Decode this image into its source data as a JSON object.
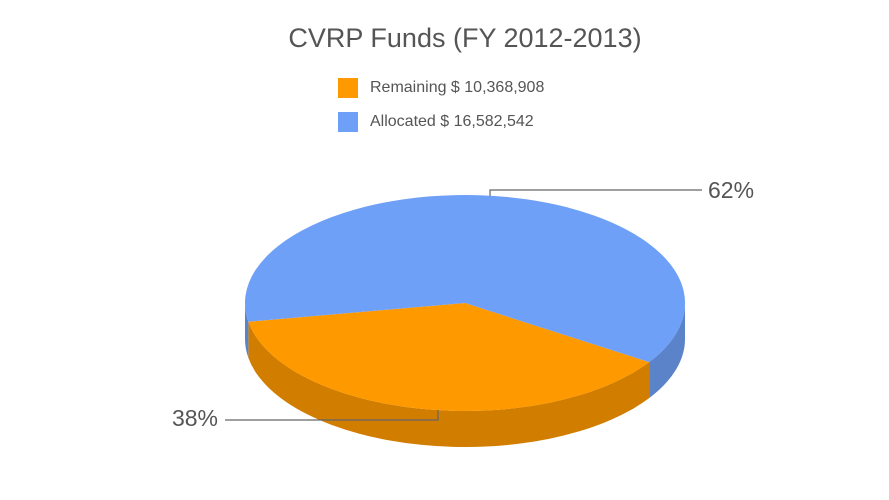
{
  "chart_data": {
    "type": "pie",
    "title": "CVRP Funds (FY 2012-2013)",
    "categories": [
      "Remaining $ 10,368,908",
      "Allocated $ 16,582,542"
    ],
    "values": [
      38,
      62
    ],
    "value_labels": [
      "38%",
      "62%"
    ],
    "colors": [
      "#ff9900",
      "#6fa0f7"
    ]
  }
}
